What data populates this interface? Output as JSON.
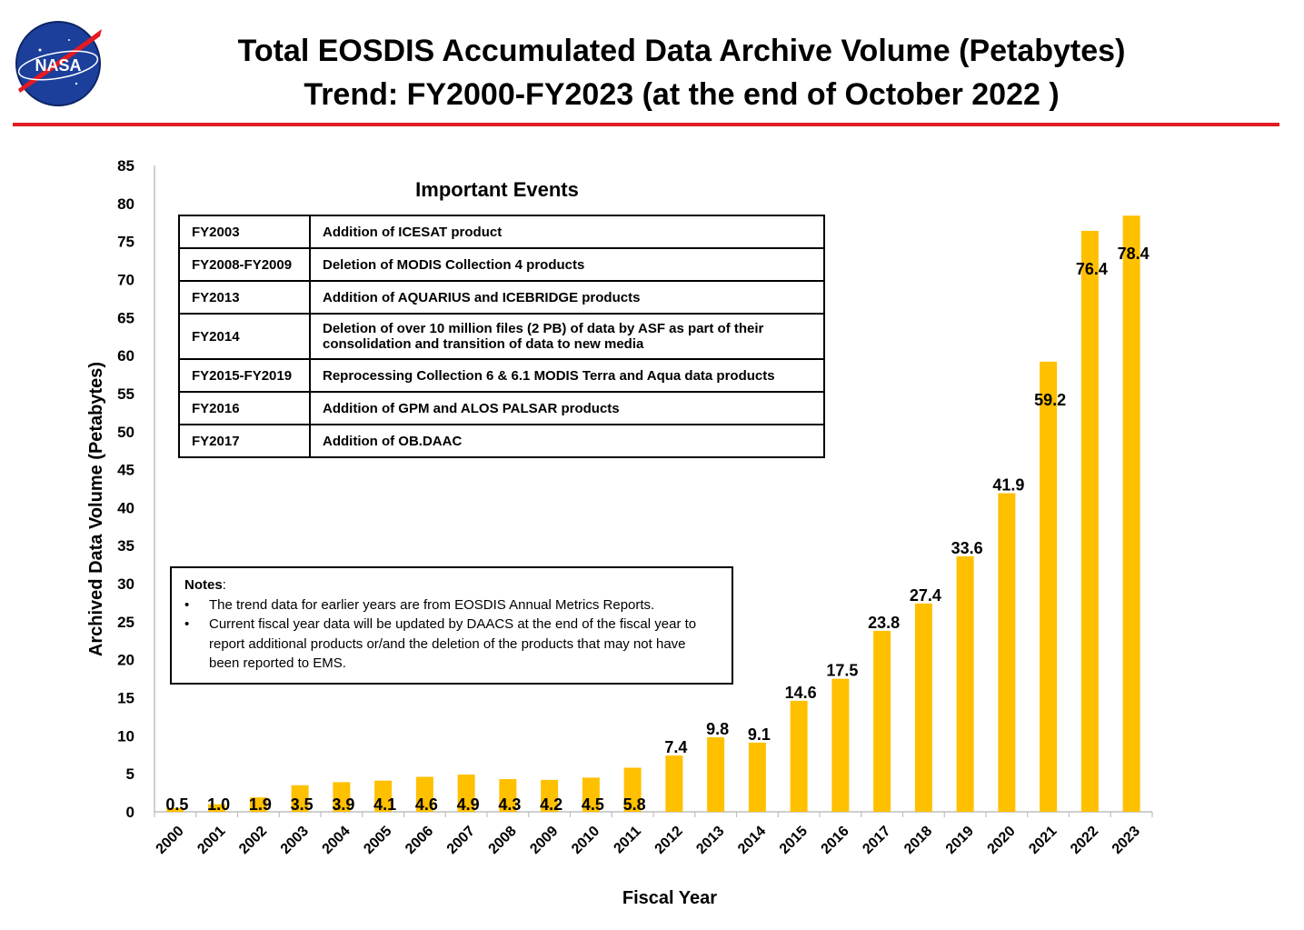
{
  "header": {
    "title_line1": "Total EOSDIS Accumulated Data Archive Volume (Petabytes)",
    "title_line2": "Trend: FY2000-FY2023 (at the end of October 2022 )",
    "logo_text": "NASA",
    "rule_color": "#e31b23"
  },
  "events": {
    "title": "Important Events",
    "rows": [
      {
        "year": "FY2003",
        "event": "Addition of ICESAT product"
      },
      {
        "year": "FY2008-FY2009",
        "event": "Deletion of  MODIS Collection 4 products"
      },
      {
        "year": "FY2013",
        "event": "Addition of AQUARIUS and ICEBRIDGE products"
      },
      {
        "year": "FY2014",
        "event": "Deletion of over 10 million files (2 PB) of data by ASF as part of their consolidation and transition of data to new media"
      },
      {
        "year": "FY2015-FY2019",
        "event": "Reprocessing  Collection 6 & 6.1 MODIS Terra and Aqua data products"
      },
      {
        "year": "FY2016",
        "event": "Addition of GPM and ALOS PALSAR products"
      },
      {
        "year": "FY2017",
        "event": "Addition of OB.DAAC"
      }
    ]
  },
  "notes": {
    "title": "Notes",
    "items": [
      "The trend data for earlier years are from EOSDIS Annual Metrics Reports.",
      "Current fiscal year data will be updated by DAACS at the end of the fiscal year to report additional products or/and the deletion of the products that may not have been reported to EMS."
    ]
  },
  "chart_data": {
    "type": "bar",
    "title": "Total EOSDIS Accumulated Data Archive Volume (Petabytes) Trend: FY2000-FY2023 (at the end of October 2022 )",
    "xlabel": "Fiscal Year",
    "ylabel": "Archived Data Volume (Petabytes)",
    "ylim": [
      0,
      85
    ],
    "yticks": [
      0,
      5,
      10,
      15,
      20,
      25,
      30,
      35,
      40,
      45,
      50,
      55,
      60,
      65,
      70,
      75,
      80,
      85
    ],
    "grid": false,
    "legend": "none",
    "bar_color": "#ffc000",
    "categories": [
      "2000",
      "2001",
      "2002",
      "2003",
      "2004",
      "2005",
      "2006",
      "2007",
      "2008",
      "2009",
      "2010",
      "2011",
      "2012",
      "2013",
      "2014",
      "2015",
      "2016",
      "2017",
      "2018",
      "2019",
      "2020",
      "2021",
      "2022",
      "2023"
    ],
    "values": [
      0.5,
      1.0,
      1.9,
      3.5,
      3.9,
      4.1,
      4.6,
      4.9,
      4.3,
      4.2,
      4.5,
      5.8,
      7.4,
      9.8,
      9.1,
      14.6,
      17.5,
      23.8,
      27.4,
      33.6,
      41.9,
      59.2,
      76.4,
      78.4
    ],
    "data_labels": [
      "0.5",
      "1.0",
      "1.9",
      "3.5",
      "3.9",
      "4.1",
      "4.6",
      "4.9",
      "4.3",
      "4.2",
      "4.5",
      "5.8",
      "7.4",
      "9.8",
      "9.1",
      "14.6",
      "17.5",
      "23.8",
      "27.4",
      "33.6",
      "41.9",
      "59.2",
      "76.4",
      "78.4"
    ]
  }
}
